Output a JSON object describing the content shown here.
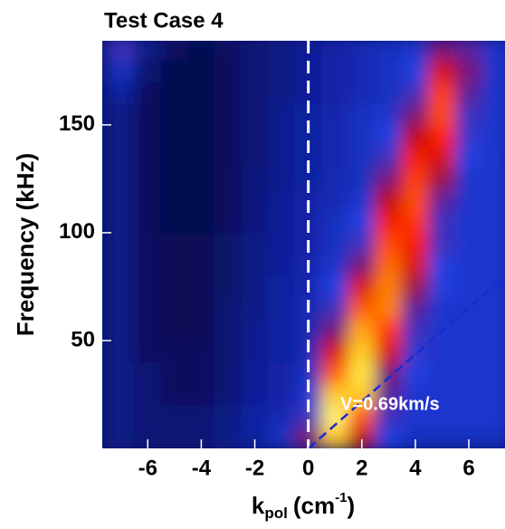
{
  "chart_data": {
    "type": "heatmap",
    "title": "Test Case 4",
    "ylabel": "Frequency (kHz)",
    "xlabel": {
      "base": "k",
      "sub": "pol",
      "unit": "(cm",
      "sup": "-1",
      "close": ")"
    },
    "xlim": [
      -7.7,
      7.35
    ],
    "ylim": [
      0,
      189
    ],
    "xticks": [
      -6,
      -4,
      -2,
      0,
      2,
      4,
      6
    ],
    "yticks": [
      50,
      100,
      150
    ],
    "x_edges": [
      -7.5,
      -6.5,
      -5.5,
      -4.5,
      -3.5,
      -2.5,
      -1.5,
      -0.5,
      0.5,
      1.5,
      2.5,
      3.5,
      4.5,
      5.5,
      6.5,
      7.5
    ],
    "y_edges": [
      0,
      10,
      20,
      30,
      40,
      50,
      60,
      70,
      80,
      90,
      100,
      110,
      120,
      130,
      140,
      150,
      160,
      170,
      180,
      190
    ],
    "z": [
      [
        0.12,
        0.1,
        0.1,
        0.1,
        0.12,
        0.15,
        0.2,
        0.4,
        0.85,
        0.5,
        0.25,
        0.2,
        0.2,
        0.2,
        0.2
      ],
      [
        0.12,
        0.1,
        0.1,
        0.1,
        0.12,
        0.15,
        0.18,
        0.3,
        0.95,
        0.7,
        0.3,
        0.22,
        0.22,
        0.22,
        0.22
      ],
      [
        0.12,
        0.1,
        0.08,
        0.08,
        0.1,
        0.14,
        0.16,
        0.22,
        0.85,
        0.85,
        0.35,
        0.22,
        0.22,
        0.22,
        0.22
      ],
      [
        0.12,
        0.1,
        0.08,
        0.08,
        0.1,
        0.14,
        0.16,
        0.2,
        0.7,
        0.9,
        0.4,
        0.25,
        0.22,
        0.22,
        0.22
      ],
      [
        0.12,
        0.08,
        0.08,
        0.08,
        0.1,
        0.13,
        0.15,
        0.18,
        0.55,
        0.85,
        0.55,
        0.28,
        0.22,
        0.22,
        0.22
      ],
      [
        0.12,
        0.08,
        0.07,
        0.07,
        0.1,
        0.13,
        0.15,
        0.18,
        0.4,
        0.8,
        0.65,
        0.3,
        0.22,
        0.22,
        0.22
      ],
      [
        0.12,
        0.08,
        0.07,
        0.07,
        0.1,
        0.12,
        0.15,
        0.18,
        0.3,
        0.7,
        0.75,
        0.35,
        0.22,
        0.22,
        0.22
      ],
      [
        0.12,
        0.08,
        0.07,
        0.07,
        0.09,
        0.12,
        0.15,
        0.17,
        0.25,
        0.55,
        0.75,
        0.45,
        0.25,
        0.22,
        0.22
      ],
      [
        0.12,
        0.08,
        0.07,
        0.07,
        0.09,
        0.12,
        0.14,
        0.17,
        0.22,
        0.4,
        0.72,
        0.55,
        0.25,
        0.22,
        0.22
      ],
      [
        0.12,
        0.08,
        0.07,
        0.07,
        0.09,
        0.12,
        0.14,
        0.16,
        0.2,
        0.3,
        0.68,
        0.6,
        0.3,
        0.22,
        0.22
      ],
      [
        0.12,
        0.08,
        0.06,
        0.06,
        0.08,
        0.11,
        0.14,
        0.16,
        0.2,
        0.25,
        0.6,
        0.65,
        0.3,
        0.22,
        0.22
      ],
      [
        0.12,
        0.08,
        0.06,
        0.06,
        0.08,
        0.11,
        0.14,
        0.16,
        0.18,
        0.22,
        0.5,
        0.68,
        0.35,
        0.22,
        0.22
      ],
      [
        0.12,
        0.08,
        0.06,
        0.06,
        0.08,
        0.11,
        0.13,
        0.15,
        0.18,
        0.2,
        0.4,
        0.66,
        0.45,
        0.22,
        0.22
      ],
      [
        0.12,
        0.08,
        0.06,
        0.06,
        0.08,
        0.1,
        0.13,
        0.15,
        0.17,
        0.2,
        0.3,
        0.6,
        0.55,
        0.25,
        0.22
      ],
      [
        0.12,
        0.08,
        0.06,
        0.06,
        0.08,
        0.1,
        0.13,
        0.15,
        0.17,
        0.2,
        0.25,
        0.5,
        0.62,
        0.28,
        0.22
      ],
      [
        0.12,
        0.08,
        0.06,
        0.06,
        0.08,
        0.1,
        0.13,
        0.15,
        0.17,
        0.2,
        0.22,
        0.4,
        0.68,
        0.3,
        0.22
      ],
      [
        0.15,
        0.08,
        0.06,
        0.06,
        0.08,
        0.1,
        0.12,
        0.14,
        0.16,
        0.18,
        0.2,
        0.3,
        0.66,
        0.35,
        0.22
      ],
      [
        0.2,
        0.1,
        0.06,
        0.06,
        0.08,
        0.1,
        0.12,
        0.14,
        0.16,
        0.18,
        0.2,
        0.25,
        0.55,
        0.4,
        0.22
      ],
      [
        0.3,
        0.12,
        0.08,
        0.06,
        0.08,
        0.1,
        0.12,
        0.14,
        0.16,
        0.18,
        0.2,
        0.22,
        0.4,
        0.35,
        0.22
      ]
    ],
    "vline": {
      "x": 0,
      "color": "#ffffff"
    },
    "fit_line": {
      "x": [
        0,
        7.35
      ],
      "y": [
        0,
        80
      ],
      "color": "#1a2ad0"
    },
    "annotation": {
      "text": "V=0.69km/s",
      "x": 1.2,
      "y": 20
    }
  }
}
